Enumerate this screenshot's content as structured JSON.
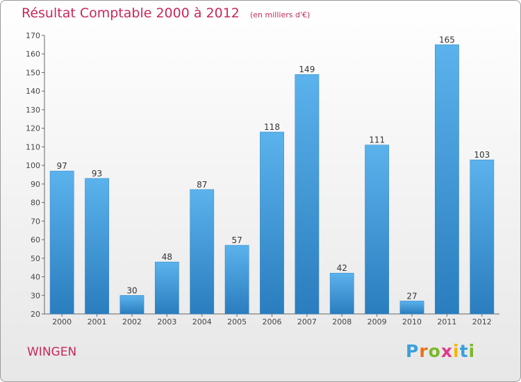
{
  "title": "Résultat Comptable 2000 à 2012",
  "subtitle": "(en milliers d'€)",
  "commune": "WINGEN",
  "logo": {
    "letters": [
      "P",
      "r",
      "o",
      "x",
      "i",
      "t",
      "i"
    ],
    "colors": [
      "#3aa0dc",
      "#e8731c",
      "#7ab829",
      "#e03a8a",
      "#f2b705",
      "#3aa0dc",
      "#7ab829"
    ]
  },
  "colors": {
    "bar": "#3f9ad8",
    "title": "#c8285a",
    "axis": "#666666"
  },
  "chart_data": {
    "type": "bar",
    "title": "Résultat Comptable 2000 à 2012",
    "subtitle": "(en milliers d'€)",
    "xlabel": "",
    "ylabel": "",
    "categories": [
      "2000",
      "2001",
      "2002",
      "2003",
      "2004",
      "2005",
      "2006",
      "2007",
      "2008",
      "2009",
      "2010",
      "2011",
      "2012"
    ],
    "values": [
      97,
      93,
      30,
      48,
      87,
      57,
      118,
      149,
      42,
      111,
      27,
      165,
      103
    ],
    "ylim": [
      20,
      170
    ],
    "yticks": [
      20,
      30,
      40,
      50,
      60,
      70,
      80,
      90,
      100,
      110,
      120,
      130,
      140,
      150,
      160,
      170
    ],
    "grid": false
  }
}
